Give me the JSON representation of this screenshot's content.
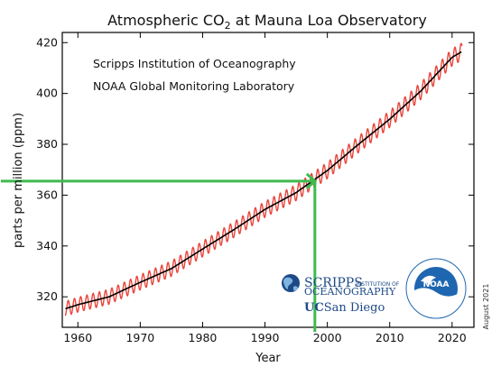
{
  "chart_data": {
    "type": "line",
    "title_prefix": "Atmospheric CO",
    "title_sub": "2",
    "title_suffix": " at Mauna Loa Observatory",
    "xlabel": "Year",
    "ylabel": "parts per million (ppm)",
    "xlim": [
      1957.5,
      2023.5
    ],
    "ylim": [
      308,
      424
    ],
    "xticks": [
      1960,
      1970,
      1980,
      1990,
      2000,
      2010,
      2020
    ],
    "yticks": [
      320,
      340,
      360,
      380,
      400,
      420
    ],
    "sources": [
      "Scripps Institution of Oceanography",
      "NOAA Global Monitoring Laboratory"
    ],
    "date_note": "August 2021",
    "series": [
      {
        "kind": "trend",
        "color": "#000000",
        "x": [
          1958,
          1960,
          1965,
          1970,
          1975,
          1980,
          1985,
          1990,
          1995,
          2000,
          2005,
          2010,
          2015,
          2020,
          2021.6
        ],
        "values": [
          315.3,
          316.9,
          320.0,
          325.7,
          331.1,
          338.8,
          346.4,
          354.4,
          361.0,
          369.7,
          380.0,
          389.9,
          401.0,
          414.2,
          416.5
        ]
      },
      {
        "kind": "monthly",
        "color": "#e8453c",
        "seasonal_amplitude": 3.2
      }
    ],
    "annotation": {
      "x": 1998,
      "y": 365.5,
      "color": "#3dbb4f"
    }
  },
  "logos": {
    "scripps_word": "SCRIPPS",
    "scripps_small": "INSTITUTION OF",
    "scripps_word2": "OCEANOGRAPHY",
    "ucsd_uc": "UC",
    "ucsd_name": "San Diego",
    "noaa": "NOAA",
    "scripps_color": "#1d4a86",
    "noaa_blue": "#1f66b0"
  }
}
